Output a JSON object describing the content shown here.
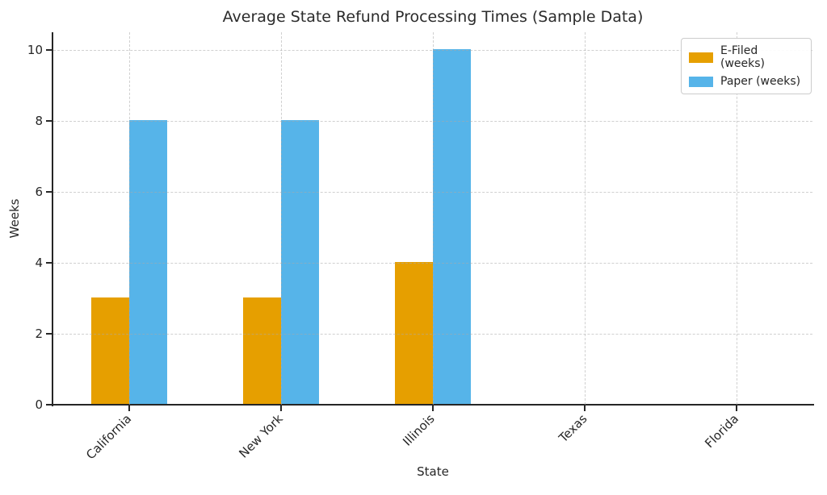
{
  "chart_data": {
    "type": "bar",
    "title": "Average State Refund Processing Times (Sample Data)",
    "xlabel": "State",
    "ylabel": "Weeks",
    "categories": [
      "California",
      "New York",
      "Illinois",
      "Texas",
      "Florida"
    ],
    "series": [
      {
        "name": "E-Filed (weeks)",
        "color": "#E69F00",
        "values": [
          3,
          3,
          4,
          0,
          0
        ]
      },
      {
        "name": "Paper (weeks)",
        "color": "#56B4E9",
        "values": [
          8,
          8,
          10,
          0,
          0
        ]
      }
    ],
    "yticks": [
      0,
      2,
      4,
      6,
      8,
      10
    ],
    "ylim": [
      0,
      10.5
    ],
    "grid": true,
    "grid_style": "dashed",
    "legend_position": "upper right",
    "colors": {
      "spine": "#262626",
      "grid": "#d9d9d9",
      "text": "#262626",
      "background": "#ffffff"
    }
  }
}
